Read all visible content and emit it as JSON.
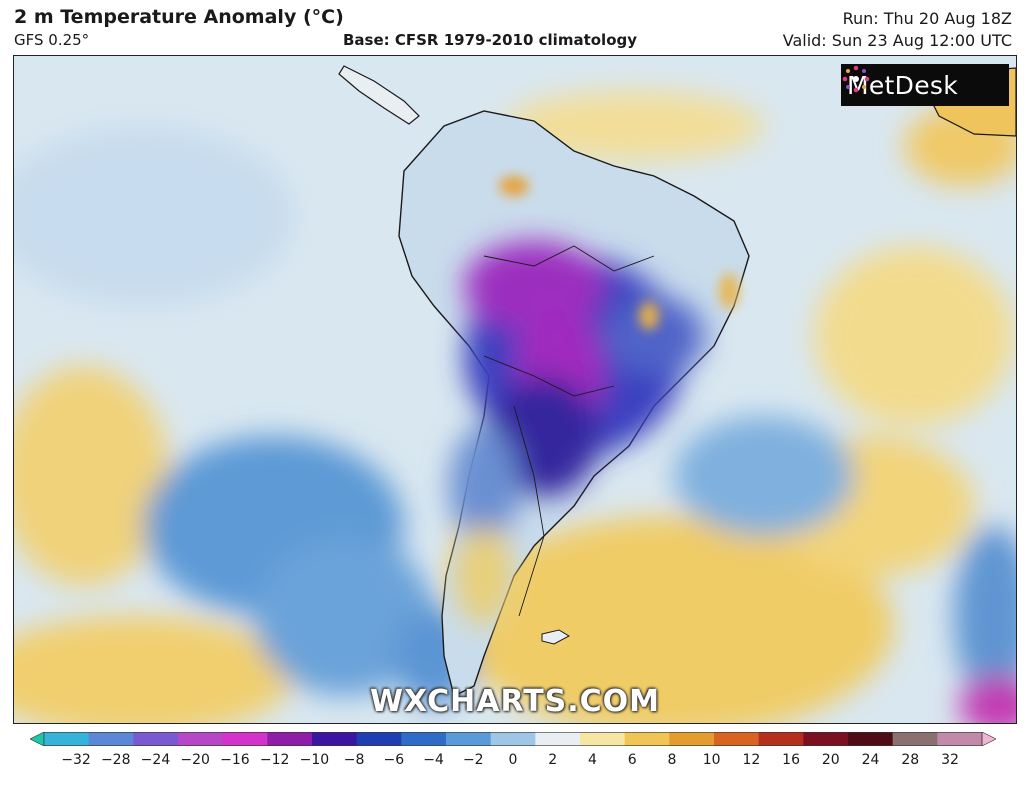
{
  "header": {
    "title": "2 m Temperature Anomaly (°C)",
    "model": "GFS 0.25°",
    "base": "Base: CFSR 1979-2010 climatology",
    "run": "Run: Thu 20 Aug 18Z",
    "valid": "Valid: Sun 23 Aug 12:00 UTC"
  },
  "logo": {
    "text": "MetDesk",
    "icon": "metdesk-compass-icon"
  },
  "watermark": "WXCHARTS.COM",
  "legend": {
    "ticks": [
      "−32",
      "−28",
      "−24",
      "−20",
      "−16",
      "−12",
      "−10",
      "−8",
      "−6",
      "−4",
      "−2",
      "0",
      "2",
      "4",
      "6",
      "8",
      "10",
      "12",
      "16",
      "20",
      "24",
      "28",
      "32"
    ],
    "colors": [
      "#19c9a8",
      "#35b3d8",
      "#5b88d6",
      "#7a5ad0",
      "#b648c8",
      "#d333c9",
      "#8e1da8",
      "#3b17a0",
      "#1f3fb0",
      "#2f6cc8",
      "#5a9ad8",
      "#9fc6e6",
      "#e8eef2",
      "#f6e6a3",
      "#f0c555",
      "#e59c2e",
      "#d96320",
      "#b52f1d",
      "#7a1020",
      "#4e0c16",
      "#8a7070",
      "#c08aa8",
      "#f0b8d0"
    ]
  }
}
